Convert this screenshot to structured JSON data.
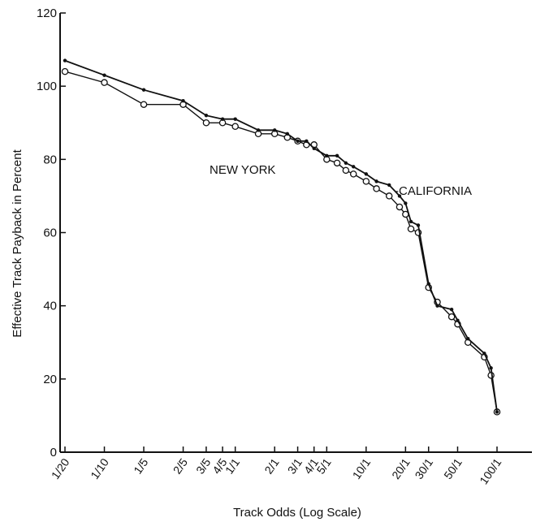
{
  "chart_data": {
    "type": "line",
    "title": "",
    "xlabel": "Track Odds (Log Scale)",
    "ylabel": "Effective Track Payback in Percent",
    "x_scale": "log",
    "x_ticks": [
      "1/20",
      "1/10",
      "1/5",
      "2/5",
      "3/5",
      "4/5",
      "1/1",
      "2/1",
      "3/1",
      "4/1",
      "5/1",
      "10/1",
      "20/1",
      "30/1",
      "50/1",
      "100/1"
    ],
    "y_ticks": [
      0,
      20,
      40,
      60,
      80,
      100,
      120
    ],
    "ylim": [
      0,
      120
    ],
    "grid": false,
    "series": [
      {
        "name": "NEW YORK",
        "marker": "circle",
        "x": [
          "1/20",
          "1/10",
          "1/5",
          "2/5",
          "3/5",
          "4/5",
          "1/1",
          "1.5/1",
          "2/1",
          "2.5/1",
          "3/1",
          "3.5/1",
          "4/1",
          "5/1",
          "6/1",
          "7/1",
          "8/1",
          "10/1",
          "12/1",
          "15/1",
          "18/1",
          "20/1",
          "22/1",
          "25/1",
          "30/1",
          "35/1",
          "45/1",
          "50/1",
          "60/1",
          "80/1",
          "90/1",
          "100/1"
        ],
        "values": [
          104,
          101,
          95,
          95,
          90,
          90,
          89,
          87,
          87,
          86,
          85,
          84,
          84,
          80,
          79,
          77,
          76,
          74,
          72,
          70,
          67,
          65,
          61,
          60,
          45,
          41,
          37,
          35,
          30,
          26,
          21,
          11
        ]
      },
      {
        "name": "CALIFORNIA",
        "marker": "dot",
        "x": [
          "1/20",
          "1/10",
          "1/5",
          "2/5",
          "3/5",
          "4/5",
          "1/1",
          "1.5/1",
          "2/1",
          "2.5/1",
          "3/1",
          "3.5/1",
          "4/1",
          "5/1",
          "6/1",
          "7/1",
          "8/1",
          "10/1",
          "12/1",
          "15/1",
          "18/1",
          "20/1",
          "22/1",
          "25/1",
          "30/1",
          "35/1",
          "45/1",
          "50/1",
          "60/1",
          "80/1",
          "90/1",
          "100/1"
        ],
        "values": [
          107,
          103,
          99,
          96,
          92,
          91,
          91,
          88,
          88,
          87,
          85,
          85,
          83,
          81,
          81,
          79,
          78,
          76,
          74,
          73,
          70,
          68,
          63,
          62,
          46,
          40,
          39,
          36,
          31,
          27,
          23,
          11
        ]
      }
    ],
    "annotations": [
      {
        "text": "NEW YORK"
      },
      {
        "text": "-CALIFORNIA"
      }
    ]
  }
}
